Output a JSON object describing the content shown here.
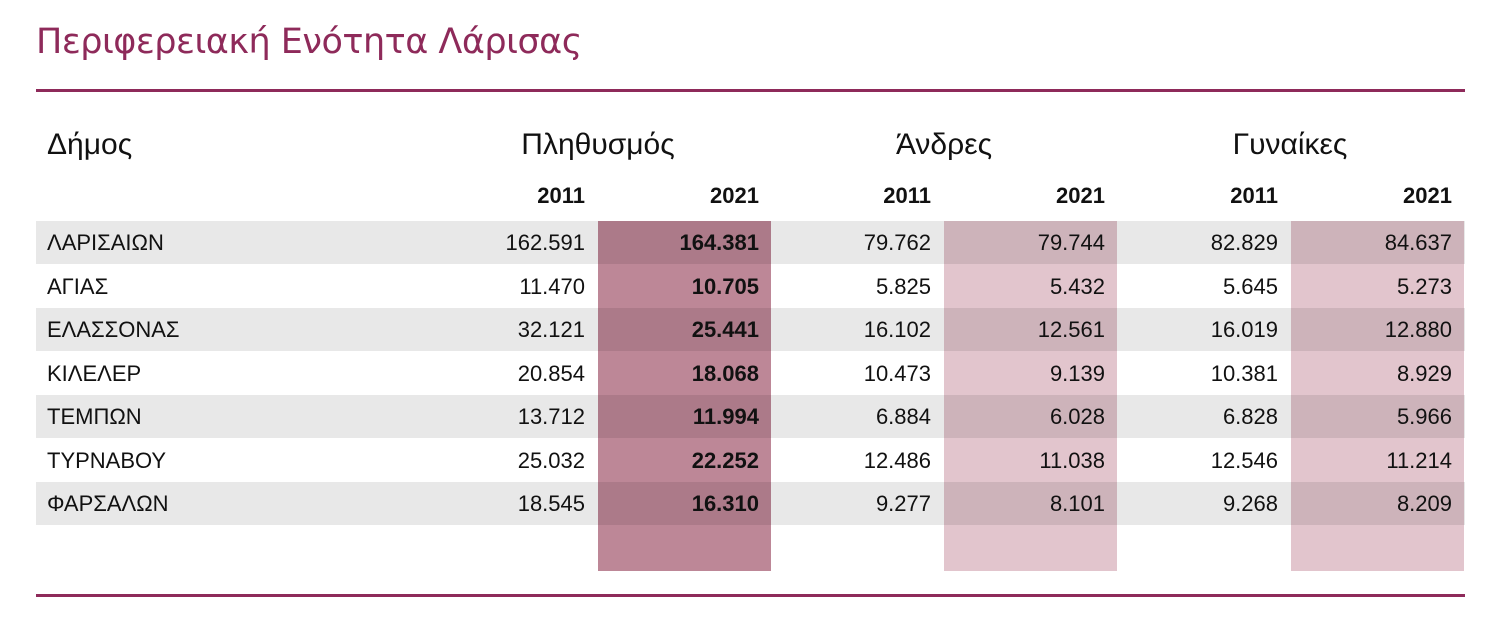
{
  "title": "Περιφερειακή Ενότητα Λάρισας",
  "headers": {
    "municipality": "Δήμος",
    "population": "Πληθυσμός",
    "men": "Άνδρες",
    "women": "Γυναίκες",
    "years": [
      "2011",
      "2021",
      "2011",
      "2021",
      "2011",
      "2021"
    ]
  },
  "colors": {
    "accent": "#8e2a5a",
    "population_2021_highlight": "#bd8797",
    "gender_2021_highlight": "#e2c5cd"
  },
  "rows": [
    {
      "name": "ΛΑΡΙΣΑΙΩΝ",
      "values": [
        "162.591",
        "164.381",
        "79.762",
        "79.744",
        "82.829",
        "84.637"
      ]
    },
    {
      "name": "ΑΓΙΑΣ",
      "values": [
        "11.470",
        "10.705",
        "5.825",
        "5.432",
        "5.645",
        "5.273"
      ]
    },
    {
      "name": "ΕΛΑΣΣΟΝΑΣ",
      "values": [
        "32.121",
        "25.441",
        "16.102",
        "12.561",
        "16.019",
        "12.880"
      ]
    },
    {
      "name": "ΚΙΛΕΛΕΡ",
      "values": [
        "20.854",
        "18.068",
        "10.473",
        "9.139",
        "10.381",
        "8.929"
      ]
    },
    {
      "name": "ΤΕΜΠΩΝ",
      "values": [
        "13.712",
        "11.994",
        "6.884",
        "6.028",
        "6.828",
        "5.966"
      ]
    },
    {
      "name": "ΤΥΡΝΑΒΟΥ",
      "values": [
        "25.032",
        "22.252",
        "12.486",
        "11.038",
        "12.546",
        "11.214"
      ]
    },
    {
      "name": "ΦΑΡΣΑΛΩΝ",
      "values": [
        "18.545",
        "16.310",
        "9.277",
        "8.101",
        "9.268",
        "8.209"
      ]
    }
  ]
}
